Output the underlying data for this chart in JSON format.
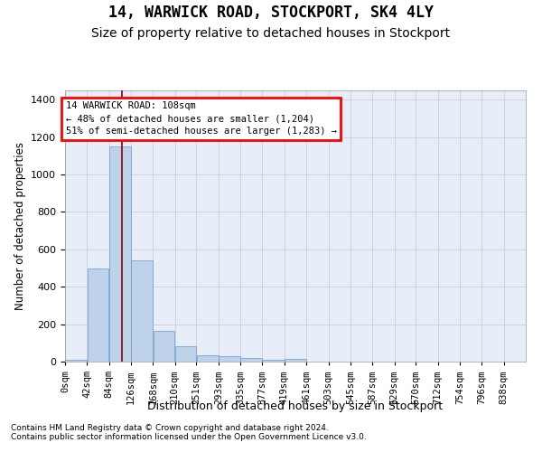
{
  "title1": "14, WARWICK ROAD, STOCKPORT, SK4 4LY",
  "title2": "Size of property relative to detached houses in Stockport",
  "xlabel": "Distribution of detached houses by size in Stockport",
  "ylabel": "Number of detached properties",
  "footnote1": "Contains HM Land Registry data © Crown copyright and database right 2024.",
  "footnote2": "Contains public sector information licensed under the Open Government Licence v3.0.",
  "bin_edges": [
    0,
    42,
    84,
    126,
    168,
    210,
    251,
    293,
    335,
    377,
    419,
    461,
    503,
    545,
    587,
    629,
    670,
    712,
    754,
    796,
    838
  ],
  "bar_heights": [
    10,
    500,
    1150,
    540,
    165,
    80,
    32,
    28,
    18,
    10,
    14,
    0,
    0,
    0,
    0,
    0,
    0,
    0,
    0,
    0
  ],
  "bar_color": "#bed3ea",
  "bar_edge_color": "#6699cc",
  "red_line_x": 108,
  "annotation_line1": "14 WARWICK ROAD: 108sqm",
  "annotation_line2": "← 48% of detached houses are smaller (1,204)",
  "annotation_line3": "51% of semi-detached houses are larger (1,283) →",
  "ylim_max": 1450,
  "yticks": [
    0,
    200,
    400,
    600,
    800,
    1000,
    1200,
    1400
  ],
  "tick_labels": [
    "0sqm",
    "42sqm",
    "84sqm",
    "126sqm",
    "168sqm",
    "210sqm",
    "251sqm",
    "293sqm",
    "335sqm",
    "377sqm",
    "419sqm",
    "461sqm",
    "503sqm",
    "545sqm",
    "587sqm",
    "629sqm",
    "670sqm",
    "712sqm",
    "754sqm",
    "796sqm",
    "838sqm"
  ],
  "bg_color": "#e8eef8",
  "grid_color": "#c8c8d0"
}
